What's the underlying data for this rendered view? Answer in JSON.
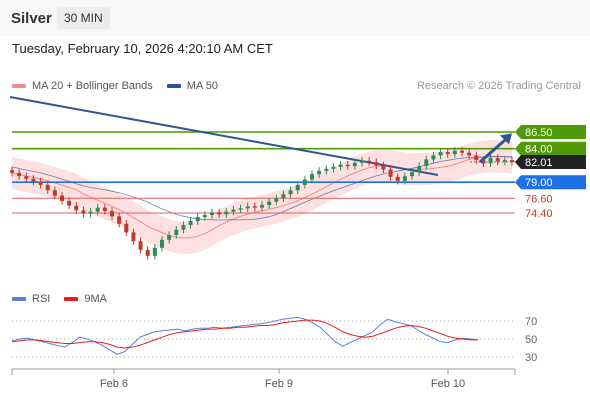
{
  "header": {
    "title": "Silver",
    "timeframe": "30 MIN"
  },
  "timestamp": "Tuesday, February 10, 2026 4:20:10 AM CET",
  "legend": {
    "main": [
      {
        "label": "MA 20 + Bollinger Bands",
        "color": "#f28b8b"
      },
      {
        "label": "MA 50",
        "color": "#2f5597"
      }
    ],
    "rsi": [
      {
        "label": "RSI",
        "color": "#5b7fd6"
      },
      {
        "label": "9MA",
        "color": "#e02020"
      }
    ]
  },
  "credit": "Research © 2026 Trading Central",
  "colors": {
    "bull": "#2e8b57",
    "bear": "#c0392b",
    "resistance": "#4f9a06",
    "pivot": "#1f6fe5",
    "support": "#e06060",
    "trendline": "#2f5597",
    "band_fill": "#fde0e0",
    "current": "#222222"
  },
  "chart_data": {
    "type": "candlestick",
    "x_ticks": [
      "Feb 6",
      "Feb 9",
      "Feb 10"
    ],
    "price_levels": [
      {
        "label": "86.50",
        "value": 86.5,
        "kind": "resistance"
      },
      {
        "label": "84.00",
        "value": 84.0,
        "kind": "resistance"
      },
      {
        "label": "82.01",
        "value": 82.01,
        "kind": "current"
      },
      {
        "label": "79.00",
        "value": 79.0,
        "kind": "pivot"
      },
      {
        "label": "76.60",
        "value": 76.6,
        "kind": "support"
      },
      {
        "label": "74.40",
        "value": 74.4,
        "kind": "support"
      }
    ],
    "closes": [
      80.4,
      79.9,
      79.5,
      79.1,
      78.6,
      77.8,
      77.0,
      76.2,
      75.5,
      74.8,
      74.3,
      74.6,
      75.2,
      74.7,
      73.9,
      72.8,
      71.5,
      70.2,
      68.9,
      68.0,
      69.2,
      70.4,
      71.1,
      71.9,
      72.6,
      73.2,
      73.8,
      74.1,
      74.5,
      74.2,
      74.6,
      74.9,
      75.1,
      75.4,
      75.2,
      75.6,
      76.1,
      76.6,
      77.2,
      77.8,
      78.6,
      79.4,
      80.2,
      80.7,
      81.0,
      81.3,
      81.6,
      81.4,
      81.9,
      82.2,
      82.0,
      81.5,
      80.9,
      79.8,
      79.2,
      79.9,
      80.5,
      81.4,
      82.4,
      83.0,
      83.5,
      83.2,
      83.7,
      83.4,
      83.0,
      82.3,
      81.8,
      82.6,
      82.1,
      82.3,
      82.01
    ],
    "rsi": {
      "levels": [
        30,
        50,
        70
      ],
      "values": [
        48,
        50,
        51,
        49,
        47,
        45,
        43,
        41,
        46,
        52,
        50,
        47,
        43,
        38,
        33,
        36,
        44,
        52,
        55,
        58,
        59,
        60,
        61,
        59,
        61,
        62,
        62,
        63,
        62,
        63,
        64,
        65,
        66,
        67,
        68,
        70,
        72,
        73,
        74,
        72,
        68,
        63,
        55,
        47,
        42,
        46,
        50,
        54,
        58,
        66,
        72,
        69,
        67,
        65,
        60,
        55,
        51,
        47,
        46,
        49,
        51,
        50,
        49
      ],
      "ma": [
        47,
        48,
        49,
        49,
        48,
        47,
        46,
        45,
        45,
        46,
        47,
        47,
        46,
        44,
        41,
        40,
        41,
        43,
        46,
        49,
        52,
        55,
        57,
        58,
        59,
        60,
        61,
        61,
        62,
        62,
        63,
        63,
        64,
        65,
        65,
        66,
        68,
        69,
        70,
        71,
        71,
        70,
        67,
        63,
        58,
        55,
        53,
        52,
        53,
        56,
        59,
        62,
        64,
        65,
        64,
        62,
        59,
        56,
        53,
        51,
        50,
        49,
        49
      ]
    }
  }
}
